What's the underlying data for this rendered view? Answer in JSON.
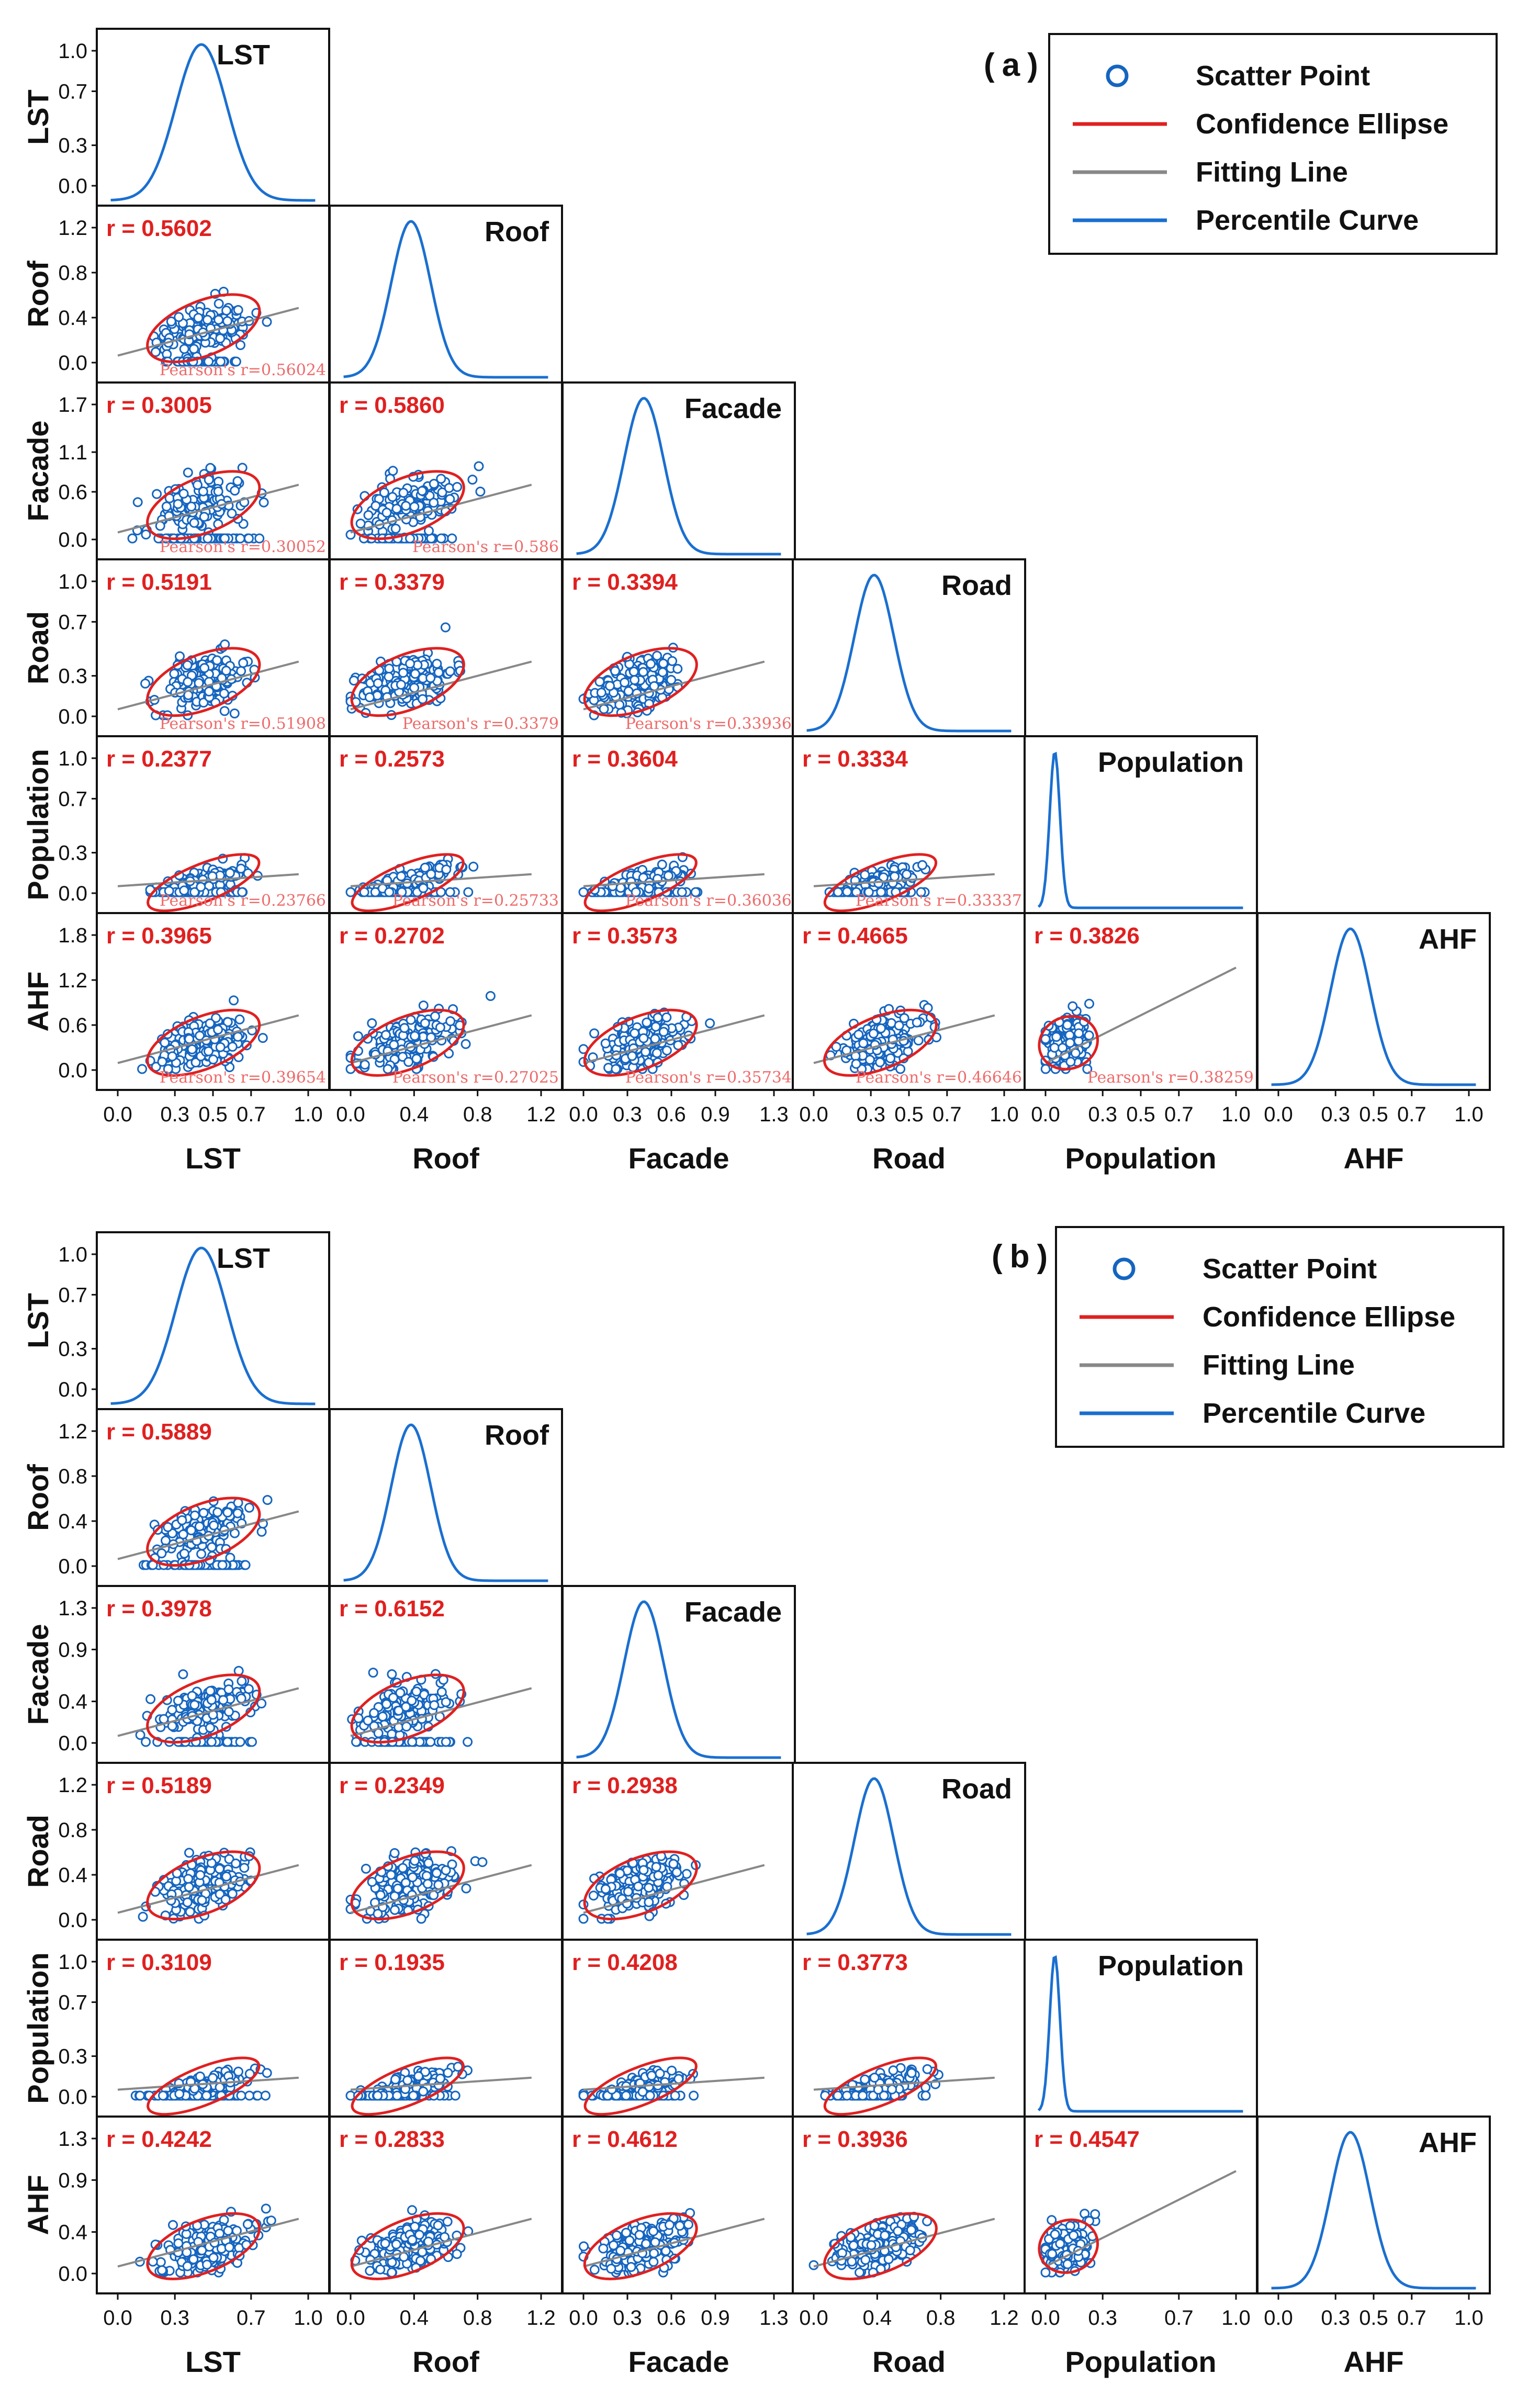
{
  "colors": {
    "scatter": "#1565c0",
    "ellipse": "#e02020",
    "fit": "#888888",
    "curve": "#1a6fd0",
    "rtext": "#e02020",
    "pearson": "#ee6b6b"
  },
  "legend_items": [
    "Scatter Point",
    "Confidence Ellipse",
    "Fitting Line",
    "Percentile Curve"
  ],
  "chart_data": [
    {
      "panel": "(a)",
      "type": "scatter",
      "variables": [
        "LST",
        "Roof",
        "Facade",
        "Road",
        "Population",
        "AHF"
      ],
      "diag_titles": [
        "LST",
        "Roof",
        "Facade",
        "Road",
        "Population",
        "AHF"
      ],
      "xticks": [
        [
          "0.0",
          "0.3",
          "0.5",
          "0.7",
          "1.0"
        ],
        [
          "0.0",
          "0.4",
          "0.8",
          "1.2"
        ],
        [
          "0.0",
          "0.3",
          "0.6",
          "0.9",
          "1.3"
        ],
        [
          "0.0",
          "0.3",
          "0.5",
          "0.7",
          "1.0"
        ],
        [
          "0.0",
          "0.3",
          "0.5",
          "0.7",
          "1.0"
        ],
        [
          "0.0",
          "0.3",
          "0.5",
          "0.7",
          "1.0"
        ]
      ],
      "xranges": [
        [
          0,
          1.0
        ],
        [
          0,
          1.2
        ],
        [
          0,
          1.3
        ],
        [
          0,
          1.0
        ],
        [
          0,
          1.0
        ],
        [
          0,
          1.0
        ]
      ],
      "yticks": [
        [
          "0.0",
          "0.3",
          "0.7",
          "1.0"
        ],
        [
          "0.0",
          "0.4",
          "0.8",
          "1.2"
        ],
        [
          "0.0",
          "0.6",
          "1.1",
          "1.7"
        ],
        [
          "0.0",
          "0.3",
          "0.7",
          "1.0"
        ],
        [
          "0.0",
          "0.3",
          "0.7",
          "1.0"
        ],
        [
          "0.0",
          "0.6",
          "1.2",
          "1.8"
        ]
      ],
      "yranges": [
        [
          0,
          1.0
        ],
        [
          0,
          1.2
        ],
        [
          0,
          1.7
        ],
        [
          0,
          1.0
        ],
        [
          0,
          1.0
        ],
        [
          0,
          1.8
        ]
      ],
      "pairs": [
        {
          "row": 1,
          "col": 0,
          "r": "r = 0.5602",
          "pearson": "Pearson's r=0.56024"
        },
        {
          "row": 2,
          "col": 0,
          "r": "r = 0.3005",
          "pearson": "Pearson's r=0.30052"
        },
        {
          "row": 2,
          "col": 1,
          "r": "r = 0.5860",
          "pearson": "Pearson's r=0.586"
        },
        {
          "row": 3,
          "col": 0,
          "r": "r = 0.5191",
          "pearson": "Pearson's r=0.51908"
        },
        {
          "row": 3,
          "col": 1,
          "r": "r = 0.3379",
          "pearson": "Pearson's r=0.3379"
        },
        {
          "row": 3,
          "col": 2,
          "r": "r = 0.3394",
          "pearson": "Pearson's r=0.33936"
        },
        {
          "row": 4,
          "col": 0,
          "r": "r = 0.2377",
          "pearson": "Pearson's r=0.23766"
        },
        {
          "row": 4,
          "col": 1,
          "r": "r = 0.2573",
          "pearson": "Pearson's r=0.25733"
        },
        {
          "row": 4,
          "col": 2,
          "r": "r = 0.3604",
          "pearson": "Pearson's r=0.36036"
        },
        {
          "row": 4,
          "col": 3,
          "r": "r = 0.3334",
          "pearson": "Pearson's r=0.33337"
        },
        {
          "row": 5,
          "col": 0,
          "r": "r = 0.3965",
          "pearson": "Pearson's r=0.39654"
        },
        {
          "row": 5,
          "col": 1,
          "r": "r = 0.2702",
          "pearson": "Pearson's r=0.27025"
        },
        {
          "row": 5,
          "col": 2,
          "r": "r = 0.3573",
          "pearson": "Pearson's r=0.35734"
        },
        {
          "row": 5,
          "col": 3,
          "r": "r = 0.4665",
          "pearson": "Pearson's r=0.46646"
        },
        {
          "row": 5,
          "col": 4,
          "r": "r = 0.3826",
          "pearson": "Pearson's r=0.38259"
        }
      ]
    },
    {
      "panel": "(b)",
      "type": "scatter",
      "variables": [
        "LST",
        "Roof",
        "Facade",
        "Road",
        "Population",
        "AHF"
      ],
      "diag_titles": [
        "LST",
        "Roof",
        "Facade",
        "Road",
        "Population",
        "AHF"
      ],
      "xticks": [
        [
          "0.0",
          "0.3",
          "0.7",
          "1.0"
        ],
        [
          "0.0",
          "0.4",
          "0.8",
          "1.2"
        ],
        [
          "0.0",
          "0.3",
          "0.6",
          "0.9",
          "1.3"
        ],
        [
          "0.0",
          "0.4",
          "0.8",
          "1.2"
        ],
        [
          "0.0",
          "0.3",
          "0.7",
          "1.0"
        ],
        [
          "0.0",
          "0.3",
          "0.5",
          "0.7",
          "1.0"
        ]
      ],
      "xranges": [
        [
          0,
          1.0
        ],
        [
          0,
          1.2
        ],
        [
          0,
          1.3
        ],
        [
          0,
          1.2
        ],
        [
          0,
          1.0
        ],
        [
          0,
          1.0
        ]
      ],
      "yticks": [
        [
          "0.0",
          "0.3",
          "0.7",
          "1.0"
        ],
        [
          "0.0",
          "0.4",
          "0.8",
          "1.2"
        ],
        [
          "0.0",
          "0.4",
          "0.9",
          "1.3"
        ],
        [
          "0.0",
          "0.4",
          "0.8",
          "1.2"
        ],
        [
          "0.0",
          "0.3",
          "0.7",
          "1.0"
        ],
        [
          "0.0",
          "0.4",
          "0.9",
          "1.3"
        ]
      ],
      "yranges": [
        [
          0,
          1.0
        ],
        [
          0,
          1.2
        ],
        [
          0,
          1.3
        ],
        [
          0,
          1.2
        ],
        [
          0,
          1.0
        ],
        [
          0,
          1.3
        ]
      ],
      "pairs": [
        {
          "row": 1,
          "col": 0,
          "r": "r = 0.5889"
        },
        {
          "row": 2,
          "col": 0,
          "r": "r = 0.3978"
        },
        {
          "row": 2,
          "col": 1,
          "r": "r = 0.6152"
        },
        {
          "row": 3,
          "col": 0,
          "r": "r = 0.5189"
        },
        {
          "row": 3,
          "col": 1,
          "r": "r = 0.2349"
        },
        {
          "row": 3,
          "col": 2,
          "r": "r = 0.2938"
        },
        {
          "row": 4,
          "col": 0,
          "r": "r = 0.3109"
        },
        {
          "row": 4,
          "col": 1,
          "r": "r = 0.1935"
        },
        {
          "row": 4,
          "col": 2,
          "r": "r = 0.4208"
        },
        {
          "row": 4,
          "col": 3,
          "r": "r = 0.3773"
        },
        {
          "row": 5,
          "col": 0,
          "r": "r = 0.4242"
        },
        {
          "row": 5,
          "col": 1,
          "r": "r = 0.2833"
        },
        {
          "row": 5,
          "col": 2,
          "r": "r = 0.4612"
        },
        {
          "row": 5,
          "col": 3,
          "r": "r = 0.3936"
        },
        {
          "row": 5,
          "col": 4,
          "r": "r = 0.4547"
        }
      ]
    }
  ]
}
